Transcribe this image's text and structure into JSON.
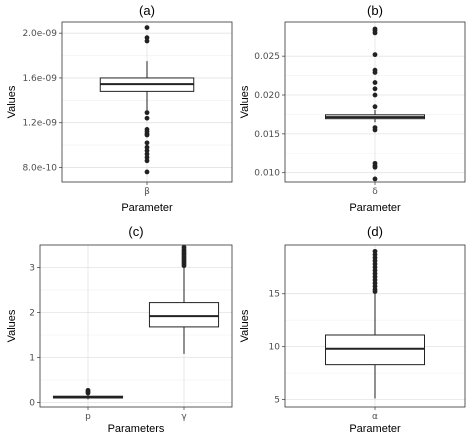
{
  "chart_data": [
    {
      "panel": "(a)",
      "type": "box",
      "title": "(a)",
      "xlabel": "Parameter",
      "ylabel": "Values",
      "categories": [
        "β"
      ],
      "yticks": [
        8e-10,
        1.2e-09,
        1.6e-09,
        2e-09
      ],
      "ytick_labels": [
        "8.0e-10",
        "1.2e-09",
        "1.6e-09",
        "2.0e-09"
      ],
      "ylim": [
        6.7e-10,
        2.1e-09
      ],
      "grid": true,
      "boxes": [
        {
          "category": "β",
          "q1": 1.48e-09,
          "median": 1.545e-09,
          "q3": 1.6e-09,
          "whisker_low": 1.31e-09,
          "whisker_high": 1.75e-09,
          "outliers": [
            2.05e-09,
            1.96e-09,
            1.93e-09,
            1.29e-09,
            1.24e-09,
            1.14e-09,
            1.12e-09,
            1.1e-09,
            1.09e-09,
            1.02e-09,
            9.8e-10,
            9.5e-10,
            9.2e-10,
            8.9e-10,
            8.6e-10,
            7.6e-10
          ]
        }
      ]
    },
    {
      "panel": "(b)",
      "type": "box",
      "title": "(b)",
      "xlabel": "Parameter",
      "ylabel": "Values",
      "categories": [
        "δ"
      ],
      "yticks": [
        0.01,
        0.015,
        0.02,
        0.025
      ],
      "ytick_labels": [
        "0.010",
        "0.015",
        "0.020",
        "0.025"
      ],
      "ylim": [
        0.0088,
        0.0294
      ],
      "grid": true,
      "boxes": [
        {
          "category": "δ",
          "q1": 0.01695,
          "median": 0.01715,
          "q3": 0.01745,
          "whisker_low": 0.0165,
          "whisker_high": 0.0181,
          "outliers": [
            0.0285,
            0.0283,
            0.028,
            0.0252,
            0.0232,
            0.0229,
            0.0216,
            0.0208,
            0.02,
            0.0185,
            0.0158,
            0.0155,
            0.0112,
            0.0109,
            0.0107,
            0.0092
          ]
        }
      ]
    },
    {
      "panel": "(c)",
      "type": "box",
      "title": "(c)",
      "xlabel": "Parameters",
      "ylabel": "Values",
      "categories": [
        "p",
        "γ"
      ],
      "yticks": [
        0,
        1,
        2,
        3
      ],
      "ytick_labels": [
        "0",
        "1",
        "2",
        "3"
      ],
      "ylim": [
        -0.1,
        3.5
      ],
      "grid": true,
      "boxes": [
        {
          "category": "p",
          "q1": 0.1,
          "median": 0.12,
          "q3": 0.14,
          "whisker_low": 0.07,
          "whisker_high": 0.19,
          "outliers": [
            0.27,
            0.24,
            0.21
          ]
        },
        {
          "category": "γ",
          "q1": 1.68,
          "median": 1.92,
          "q3": 2.22,
          "whisker_low": 1.08,
          "whisker_high": 3.0,
          "outliers": [
            3.45,
            3.4,
            3.36,
            3.32,
            3.28,
            3.24,
            3.2,
            3.16,
            3.12,
            3.08,
            3.04
          ]
        }
      ]
    },
    {
      "panel": "(d)",
      "type": "box",
      "title": "(d)",
      "xlabel": "Parameter",
      "ylabel": "Values",
      "categories": [
        "α"
      ],
      "yticks": [
        5,
        10,
        15
      ],
      "ytick_labels": [
        "5",
        "10",
        "15"
      ],
      "ylim": [
        4.3,
        19.6
      ],
      "grid": true,
      "boxes": [
        {
          "category": "α",
          "q1": 8.3,
          "median": 9.8,
          "q3": 11.1,
          "whisker_low": 5.1,
          "whisker_high": 15.0,
          "outliers": [
            19.0,
            18.7,
            18.4,
            18.1,
            17.8,
            17.5,
            17.2,
            16.9,
            16.6,
            16.3,
            16.0,
            15.7,
            15.4,
            15.2
          ]
        }
      ]
    }
  ]
}
